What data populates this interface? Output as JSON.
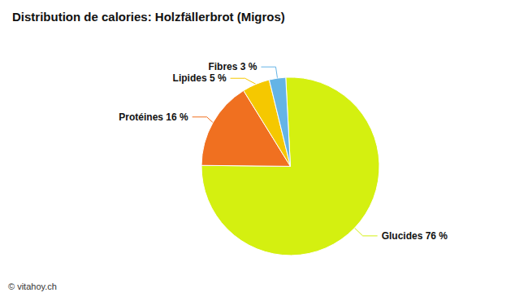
{
  "chart_data": {
    "type": "pie",
    "title": "Distribution de calories: Holzfällerbrot (Migros)",
    "categories": [
      "Glucides 76 %",
      "Protéines 16 %",
      "Lipides 5 %",
      "Fibres 3 %"
    ],
    "values": [
      76,
      16,
      5,
      3
    ],
    "colors": [
      "#d4f010",
      "#f07020",
      "#f5c800",
      "#64b4e6"
    ],
    "annotations": [
      "© vitahoy.ch"
    ]
  }
}
